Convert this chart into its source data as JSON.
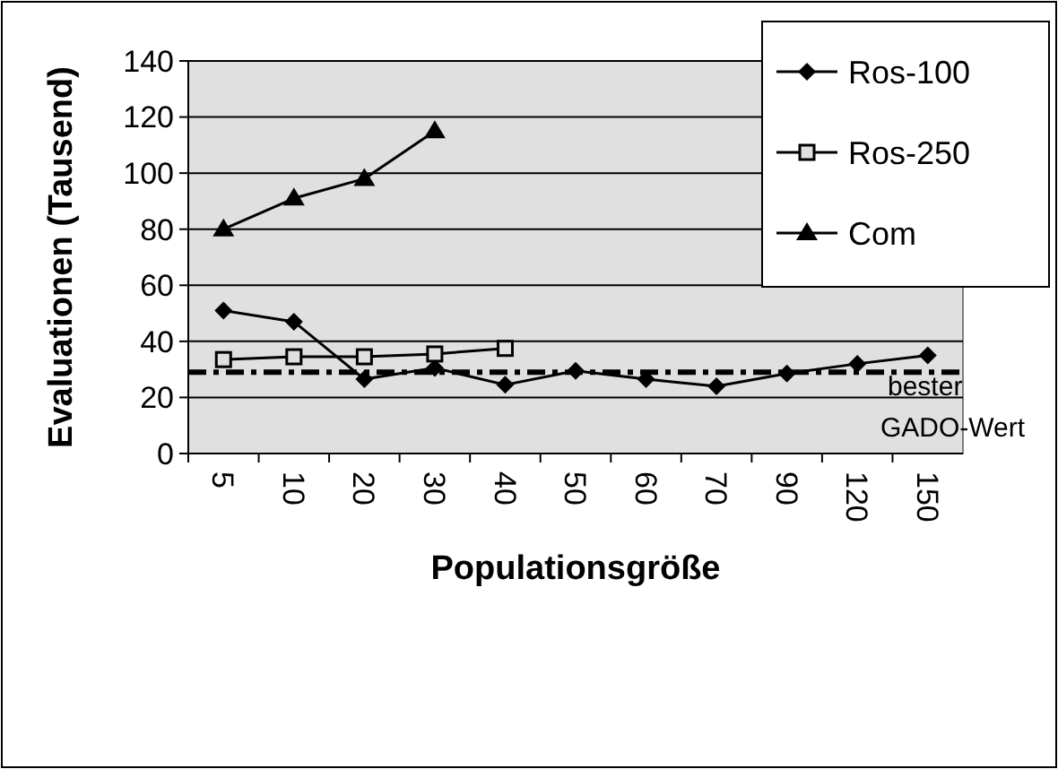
{
  "chart_data": {
    "type": "line",
    "xlabel": "Populationsgröße",
    "ylabel": "Evaluationen (Tausend)",
    "categories": [
      "5",
      "10",
      "20",
      "30",
      "40",
      "50",
      "60",
      "70",
      "90",
      "120",
      "150"
    ],
    "series": [
      {
        "name": "Ros-100",
        "color": "#000000",
        "marker": "diamond",
        "values": [
          51,
          47,
          26.5,
          30.5,
          24.5,
          29.5,
          26.5,
          24,
          28.5,
          32,
          35
        ]
      },
      {
        "name": "Ros-250",
        "color": "#000000",
        "marker": "square",
        "values": [
          33.5,
          34.5,
          34.5,
          35.5,
          37.5,
          null,
          null,
          null,
          null,
          null,
          null
        ]
      },
      {
        "name": "Com",
        "color": "#000000",
        "marker": "triangle",
        "values": [
          80,
          91,
          98,
          115,
          null,
          null,
          null,
          null,
          null,
          null,
          null
        ]
      }
    ],
    "ylim": [
      0,
      140
    ],
    "yticks": [
      0,
      20,
      40,
      60,
      80,
      100,
      120,
      140
    ],
    "grid": "y",
    "legend": "top right",
    "ref_lines": [
      {
        "axis": "y",
        "value": 29,
        "label": "bester GADO-Wert",
        "line_style": "dashdot",
        "color": "#000000"
      }
    ]
  }
}
